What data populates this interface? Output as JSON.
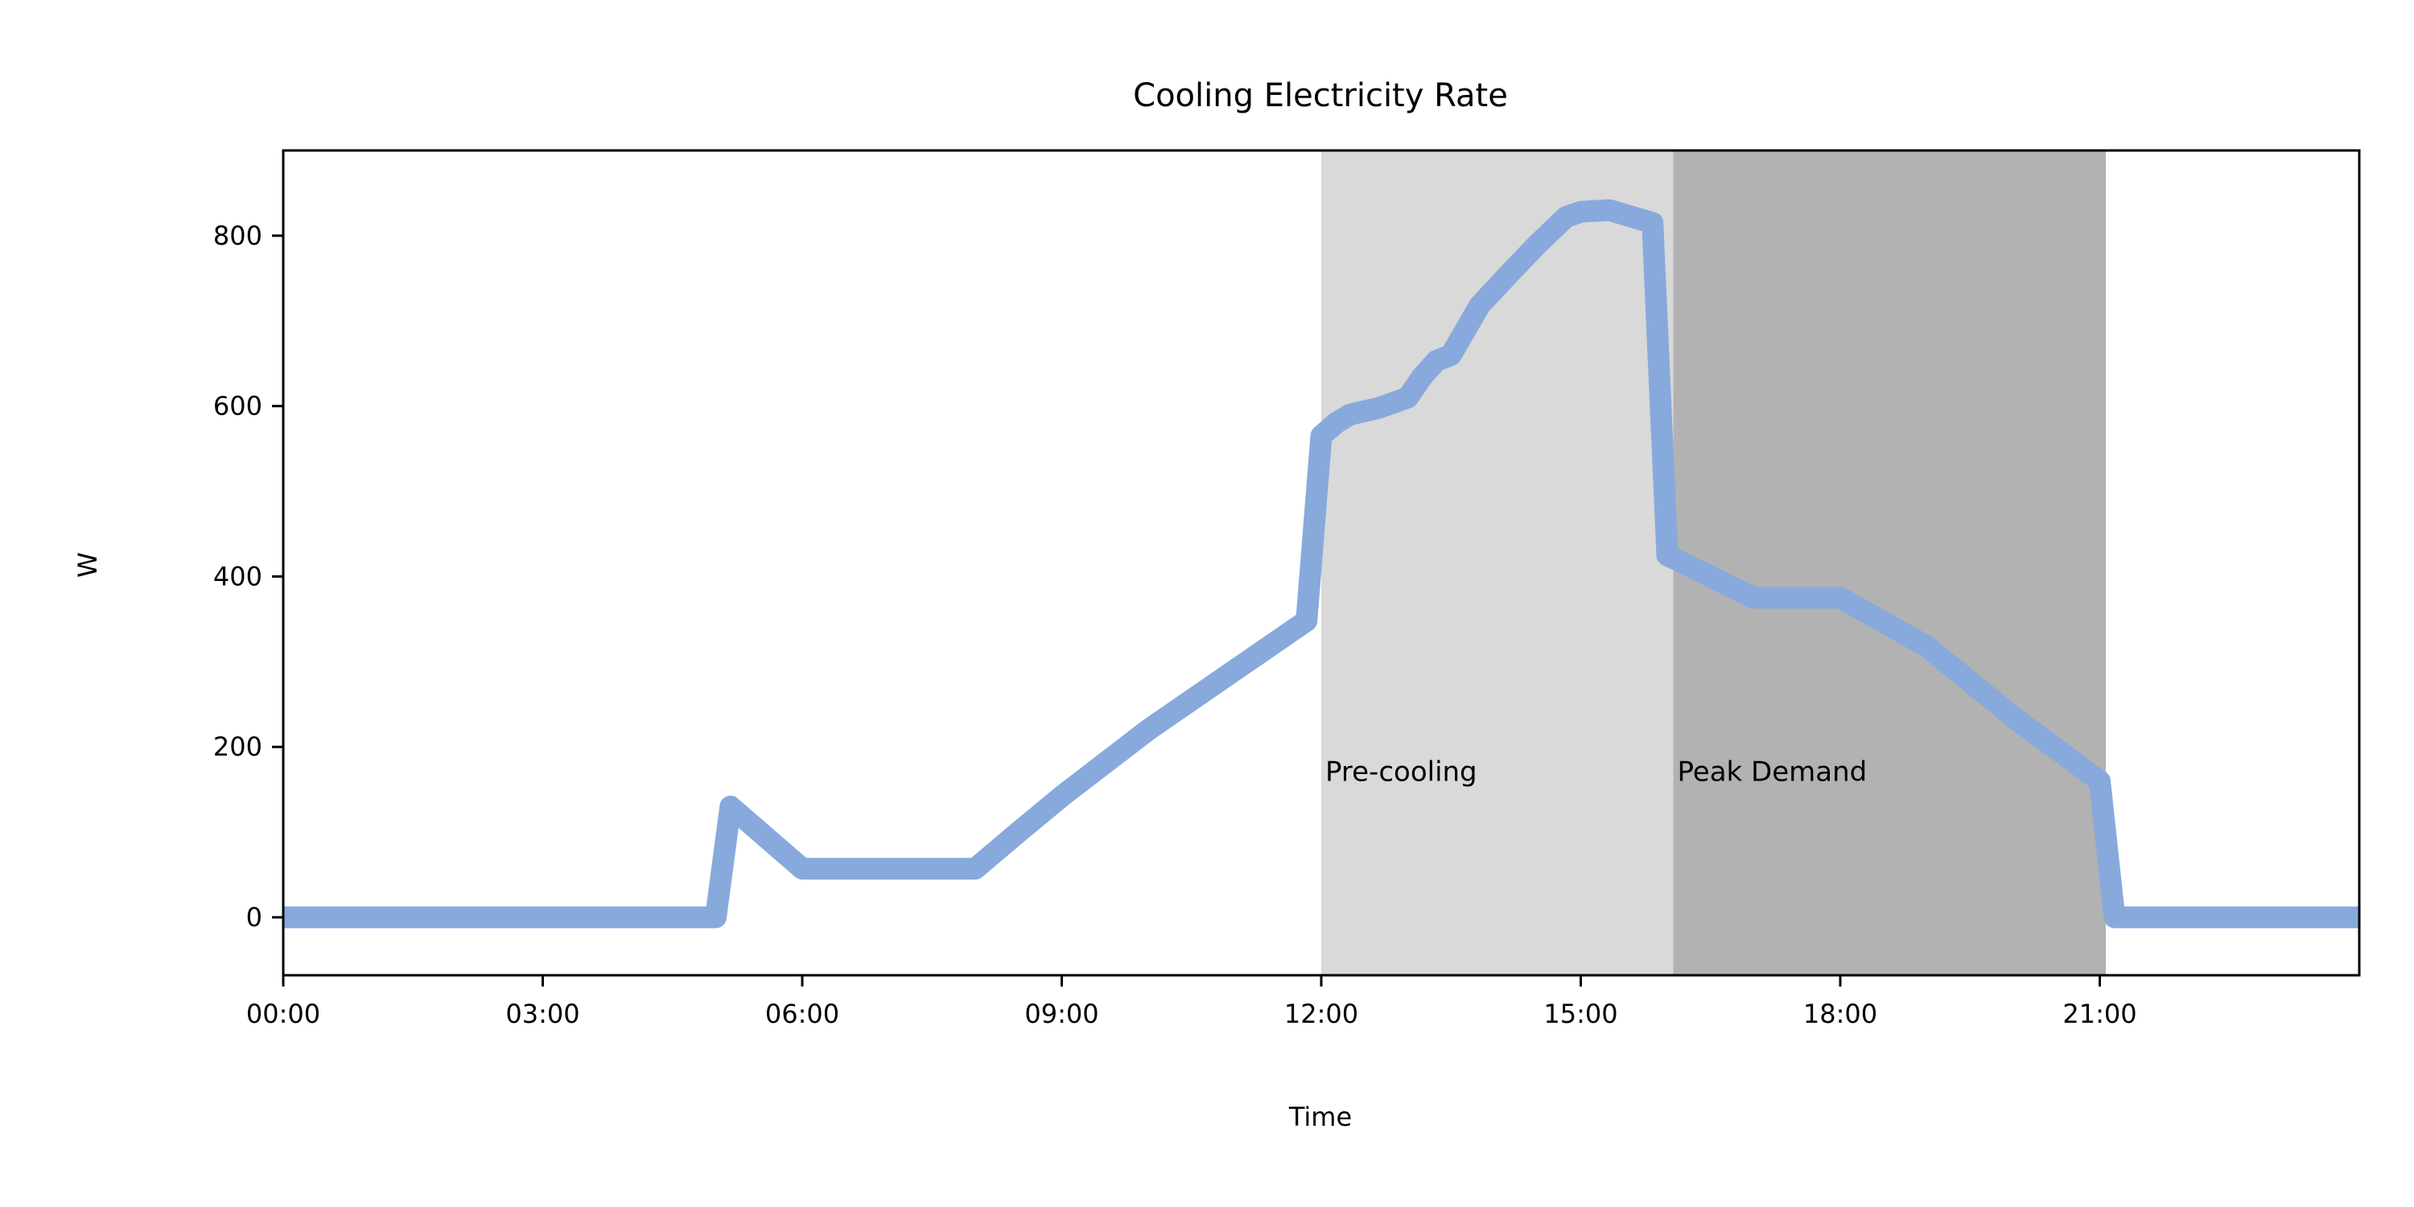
{
  "chart_data": {
    "type": "line",
    "title": "Cooling Electricity Rate",
    "xlabel": "Time",
    "ylabel": "W",
    "xlim": [
      0,
      24
    ],
    "ylim": [
      -68,
      900
    ],
    "x_ticks": [
      {
        "value": 0,
        "label": "00:00"
      },
      {
        "value": 3,
        "label": "03:00"
      },
      {
        "value": 6,
        "label": "06:00"
      },
      {
        "value": 9,
        "label": "09:00"
      },
      {
        "value": 12,
        "label": "12:00"
      },
      {
        "value": 15,
        "label": "15:00"
      },
      {
        "value": 18,
        "label": "18:00"
      },
      {
        "value": 21,
        "label": "21:00"
      }
    ],
    "y_ticks": [
      {
        "value": 0,
        "label": "0"
      },
      {
        "value": 200,
        "label": "200"
      },
      {
        "value": 400,
        "label": "400"
      },
      {
        "value": 600,
        "label": "600"
      },
      {
        "value": 800,
        "label": "800"
      }
    ],
    "grid": false,
    "shaded_regions": [
      {
        "label": "Pre-cooling",
        "x_start": 12,
        "x_end": 16.07,
        "color": "#d9d9d9"
      },
      {
        "label": "Peak Demand",
        "x_start": 16.07,
        "x_end": 21.07,
        "color": "#b2b2b2"
      }
    ],
    "series": [
      {
        "color": "#88a9dc",
        "x": [
          0,
          5,
          5.17,
          6,
          8,
          8.5,
          9,
          10,
          11,
          11.83,
          12,
          12.17,
          12.33,
          12.67,
          13,
          13.17,
          13.33,
          13.5,
          13.83,
          14.17,
          14.5,
          14.83,
          15,
          15.33,
          15.83,
          16,
          16.5,
          17,
          17.5,
          18,
          19,
          20,
          21,
          21.17,
          24
        ],
        "y": [
          0,
          0,
          130,
          57,
          57,
          100,
          142,
          220,
          290,
          348,
          565,
          580,
          590,
          598,
          610,
          635,
          653,
          660,
          718,
          755,
          790,
          822,
          828,
          830,
          815,
          425,
          400,
          375,
          375,
          375,
          318,
          235,
          160,
          0,
          0
        ]
      }
    ]
  }
}
